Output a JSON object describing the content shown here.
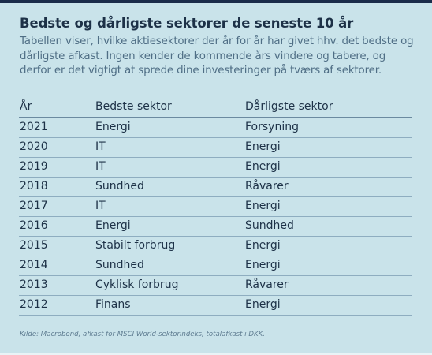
{
  "title": "Bedste og dårligste sektorer de seneste 10 år",
  "intro": "Tabellen viser, hvilke aktiesektorer der år for år har givet hhv. det bedste og dårligste afkast. Ingen kender de kommende års vindere og tabere, og derfor er det vigtigt at sprede dine investeringer på tværs af sektorer.",
  "table": {
    "headers": {
      "year": "År",
      "best": "Bedste sektor",
      "worst": "Dårligste sektor"
    },
    "rows": [
      {
        "year": "2021",
        "best": "Energi",
        "worst": "Forsyning"
      },
      {
        "year": "2020",
        "best": "IT",
        "worst": "Energi"
      },
      {
        "year": "2019",
        "best": "IT",
        "worst": "Energi"
      },
      {
        "year": "2018",
        "best": "Sundhed",
        "worst": "Råvarer"
      },
      {
        "year": "2017",
        "best": "IT",
        "worst": "Energi"
      },
      {
        "year": "2016",
        "best": "Energi",
        "worst": "Sundhed"
      },
      {
        "year": "2015",
        "best": "Stabilt forbrug",
        "worst": "Energi"
      },
      {
        "year": "2014",
        "best": "Sundhed",
        "worst": "Energi"
      },
      {
        "year": "2013",
        "best": "Cyklisk forbrug",
        "worst": "Råvarer"
      },
      {
        "year": "2012",
        "best": "Finans",
        "worst": "Energi"
      }
    ]
  },
  "source": "Kilde: Macrobond, afkast for MSCI World-sektorindeks, totalafkast i DKK."
}
